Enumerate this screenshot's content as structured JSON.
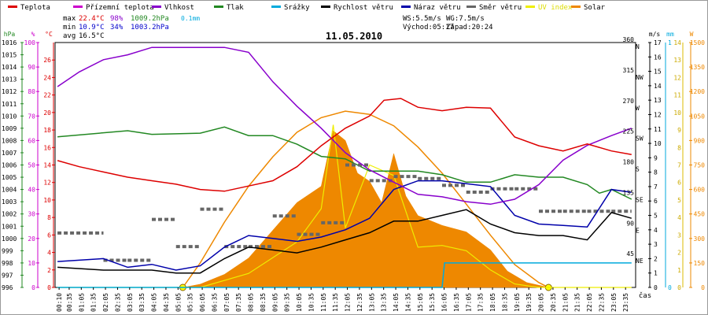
{
  "chart_data": {
    "type": "line",
    "title": "11.05.2010",
    "xlabel": "čas",
    "legend": [
      {
        "label": "Teplota",
        "color": "#dd0000"
      },
      {
        "label": "Přízemní teplota",
        "color": "#cc00cc"
      },
      {
        "label": "Vlhkost",
        "color": "#8800cc"
      },
      {
        "label": "Tlak",
        "color": "#228822"
      },
      {
        "label": "Srážky",
        "color": "#00aadd"
      },
      {
        "label": "Rychlost větru",
        "color": "#000000"
      },
      {
        "label": "Náraz větru",
        "color": "#0000aa"
      },
      {
        "label": "Směr větru",
        "color": "#666666"
      },
      {
        "label": "UV index",
        "color": "#eeee00"
      },
      {
        "label": "Solar",
        "color": "#ee8800"
      }
    ],
    "stats": {
      "max": {
        "label": "max",
        "temp": "22.4°C",
        "hum": "98%",
        "press": "1009.2hPa",
        "rain": "0.1mm"
      },
      "min": {
        "label": "min",
        "temp": "10.9°C",
        "hum": "34%",
        "press": "1003.2hPa"
      },
      "avg": {
        "label": "avg",
        "temp": "16.5°C"
      },
      "ws": "WS:5.5m/s",
      "wg": "WG:7.5m/s",
      "sunrise": "Východ:05:17",
      "sunset": "Západ:20:24"
    },
    "axes": {
      "hpa": {
        "unit": "hPa",
        "min": 996,
        "max": 1016,
        "ticks": [
          "996",
          "997",
          "998",
          "999",
          "1000",
          "1001",
          "1002",
          "1003",
          "1004",
          "1005",
          "1006",
          "1007",
          "1008",
          "1009",
          "1010",
          "1011",
          "1012",
          "1013",
          "1014",
          "1015",
          "1016"
        ]
      },
      "pct": {
        "unit": "%",
        "min": 0,
        "max": 100,
        "ticks": [
          "0",
          "10",
          "20",
          "30",
          "40",
          "50",
          "60",
          "70",
          "80",
          "90",
          "100"
        ]
      },
      "temp": {
        "unit": "°C",
        "min": 0,
        "max": 28,
        "ticks": [
          "0",
          "2",
          "4",
          "6",
          "8",
          "10",
          "12",
          "14",
          "16",
          "18",
          "20",
          "22",
          "24",
          "26"
        ]
      },
      "dir": {
        "ticks": [
          {
            "deg": "45",
            "lbl": "NE"
          },
          {
            "deg": "90",
            "lbl": "E"
          },
          {
            "deg": "135",
            "lbl": "SE"
          },
          {
            "deg": "180",
            "lbl": "S"
          },
          {
            "deg": "225",
            "lbl": "SW"
          },
          {
            "deg": "270",
            "lbl": "W"
          },
          {
            "deg": "315",
            "lbl": "NW"
          },
          {
            "deg": "360",
            "lbl": "N"
          }
        ]
      },
      "ms": {
        "unit": "m/s",
        "min": 0,
        "max": 17,
        "ticks": [
          "0",
          "1",
          "2",
          "3",
          "4",
          "5",
          "6",
          "7",
          "8",
          "9",
          "10",
          "11",
          "12",
          "13",
          "14",
          "15",
          "16",
          "17"
        ]
      },
      "mm": {
        "unit": "mm",
        "min": 0,
        "max": 1,
        "ticks": [
          "0",
          "1"
        ]
      },
      "uv": {
        "min": 0,
        "max": 14,
        "ticks": [
          "0",
          "1",
          "2",
          "3",
          "4",
          "5",
          "6",
          "7",
          "8",
          "9",
          "10",
          "11",
          "12",
          "13",
          "14"
        ]
      },
      "w": {
        "unit": "W",
        "min": 0,
        "max": 1500,
        "ticks": [
          "0",
          "150",
          "300",
          "450",
          "600",
          "750",
          "900",
          "1050",
          "1200",
          "1350",
          "1500"
        ]
      }
    },
    "x_ticks": [
      "00:10",
      "00:35",
      "01:05",
      "01:35",
      "02:05",
      "02:35",
      "03:05",
      "03:35",
      "04:05",
      "04:35",
      "05:05",
      "05:35",
      "06:05",
      "06:35",
      "07:05",
      "07:35",
      "08:05",
      "08:35",
      "09:05",
      "09:35",
      "10:05",
      "10:35",
      "11:05",
      "11:35",
      "12:05",
      "12:35",
      "13:05",
      "13:35",
      "14:05",
      "14:35",
      "15:05",
      "15:35",
      "16:05",
      "16:35",
      "17:05",
      "17:35",
      "18:05",
      "18:35",
      "19:05",
      "19:35",
      "20:05",
      "20:35",
      "21:05",
      "21:35",
      "22:05",
      "22:35",
      "23:05",
      "23:35"
    ],
    "series": {
      "temp": {
        "axis": "temp",
        "color": "#dd0000",
        "points": [
          [
            0.1,
            14.5
          ],
          [
            1,
            13.8
          ],
          [
            2,
            13.2
          ],
          [
            3,
            12.6
          ],
          [
            4,
            12.2
          ],
          [
            5,
            11.8
          ],
          [
            6,
            11.2
          ],
          [
            7,
            11
          ],
          [
            8,
            11.6
          ],
          [
            9,
            12.2
          ],
          [
            10,
            13.8
          ],
          [
            11,
            16.2
          ],
          [
            12,
            18.2
          ],
          [
            13,
            19.6
          ],
          [
            13.6,
            21.4
          ],
          [
            14.3,
            21.6
          ],
          [
            15,
            20.6
          ],
          [
            16,
            20.2
          ],
          [
            17,
            20.6
          ],
          [
            18,
            20.5
          ],
          [
            19,
            17.2
          ],
          [
            20,
            16.2
          ],
          [
            21,
            15.6
          ],
          [
            22,
            16.4
          ],
          [
            23,
            15.6
          ],
          [
            23.83,
            15.2
          ]
        ]
      },
      "humidity": {
        "axis": "pct",
        "color": "#8800cc",
        "points": [
          [
            0.1,
            82
          ],
          [
            1,
            88
          ],
          [
            2,
            93
          ],
          [
            3,
            95
          ],
          [
            4,
            98
          ],
          [
            5,
            98
          ],
          [
            6,
            98
          ],
          [
            7,
            98
          ],
          [
            8,
            96
          ],
          [
            9,
            84
          ],
          [
            10,
            74
          ],
          [
            11,
            65
          ],
          [
            12,
            55
          ],
          [
            13,
            48
          ],
          [
            14,
            43
          ],
          [
            15,
            38
          ],
          [
            16,
            37
          ],
          [
            17,
            35
          ],
          [
            18,
            34
          ],
          [
            19,
            36
          ],
          [
            20,
            42
          ],
          [
            21,
            52
          ],
          [
            22,
            58
          ],
          [
            23,
            62
          ],
          [
            23.83,
            65
          ]
        ]
      },
      "pressure": {
        "axis": "hpa",
        "color": "#228822",
        "points": [
          [
            0.1,
            1008.3
          ],
          [
            3,
            1008.8
          ],
          [
            4,
            1008.5
          ],
          [
            6,
            1008.6
          ],
          [
            7,
            1009.1
          ],
          [
            8,
            1008.4
          ],
          [
            9,
            1008.4
          ],
          [
            10,
            1007.7
          ],
          [
            11,
            1006.7
          ],
          [
            12,
            1006.5
          ],
          [
            13,
            1005.5
          ],
          [
            15,
            1005.5
          ],
          [
            16,
            1005.2
          ],
          [
            17,
            1004.6
          ],
          [
            18,
            1004.6
          ],
          [
            19,
            1005.2
          ],
          [
            20,
            1005
          ],
          [
            21,
            1005
          ],
          [
            22,
            1004.4
          ],
          [
            22.5,
            1003.7
          ],
          [
            23,
            1004
          ],
          [
            23.83,
            1003.2
          ]
        ]
      },
      "wind_speed": {
        "axis": "ms",
        "color": "#000000",
        "points": [
          [
            0.1,
            1.4
          ],
          [
            2,
            1.2
          ],
          [
            4,
            1.2
          ],
          [
            5,
            1
          ],
          [
            6,
            1
          ],
          [
            7,
            2
          ],
          [
            8,
            2.8
          ],
          [
            9,
            2.6
          ],
          [
            10,
            2.4
          ],
          [
            11,
            2.8
          ],
          [
            12,
            3.3
          ],
          [
            13,
            3.8
          ],
          [
            14,
            4.6
          ],
          [
            15,
            4.6
          ],
          [
            16,
            5
          ],
          [
            17,
            5.4
          ],
          [
            18,
            4.4
          ],
          [
            19,
            3.8
          ],
          [
            20,
            3.6
          ],
          [
            21,
            3.6
          ],
          [
            22,
            3.3
          ],
          [
            23,
            5.2
          ],
          [
            23.83,
            4.8
          ]
        ]
      },
      "wind_gust": {
        "axis": "ms",
        "color": "#0000aa",
        "points": [
          [
            0.1,
            1.8
          ],
          [
            2,
            2
          ],
          [
            3,
            1.4
          ],
          [
            4,
            1.6
          ],
          [
            5,
            1.2
          ],
          [
            6,
            1.5
          ],
          [
            7,
            2.8
          ],
          [
            8,
            3.6
          ],
          [
            9,
            3.4
          ],
          [
            10,
            3.2
          ],
          [
            11,
            3.5
          ],
          [
            12,
            4
          ],
          [
            13,
            4.8
          ],
          [
            14,
            6.8
          ],
          [
            15,
            7.4
          ],
          [
            16,
            7.4
          ],
          [
            17,
            7.2
          ],
          [
            18,
            7
          ],
          [
            19,
            5
          ],
          [
            20,
            4.4
          ],
          [
            21,
            4.3
          ],
          [
            22,
            4.2
          ],
          [
            23,
            6.8
          ],
          [
            23.83,
            6.6
          ]
        ]
      },
      "wind_dir": {
        "axis": "dir",
        "color": "#666666",
        "points": [
          [
            0.1,
            80
          ],
          [
            2,
            40
          ],
          [
            3,
            40
          ],
          [
            4,
            100
          ],
          [
            5,
            60
          ],
          [
            6,
            115
          ],
          [
            7,
            60
          ],
          [
            8,
            60
          ],
          [
            9,
            105
          ],
          [
            10,
            78
          ],
          [
            11,
            95
          ],
          [
            12,
            180
          ],
          [
            13,
            157
          ],
          [
            14,
            163
          ],
          [
            15,
            160
          ],
          [
            16,
            150
          ],
          [
            17,
            140
          ],
          [
            18,
            145
          ],
          [
            19,
            145
          ],
          [
            20,
            112
          ],
          [
            21,
            112
          ],
          [
            22,
            112
          ],
          [
            23,
            112
          ],
          [
            23.83,
            112
          ]
        ]
      },
      "solar": {
        "axis": "w",
        "color": "#ee8800",
        "points": [
          [
            0.1,
            0
          ],
          [
            5.3,
            0
          ],
          [
            6,
            20
          ],
          [
            7,
            80
          ],
          [
            8,
            180
          ],
          [
            9,
            350
          ],
          [
            10,
            520
          ],
          [
            11,
            620
          ],
          [
            11.5,
            960
          ],
          [
            12,
            900
          ],
          [
            12.5,
            700
          ],
          [
            13,
            650
          ],
          [
            13.5,
            520
          ],
          [
            14,
            820
          ],
          [
            14.5,
            560
          ],
          [
            15,
            440
          ],
          [
            16,
            380
          ],
          [
            17,
            340
          ],
          [
            18,
            230
          ],
          [
            18.7,
            100
          ],
          [
            19.5,
            30
          ],
          [
            20.4,
            0
          ],
          [
            23.83,
            0
          ]
        ]
      },
      "solar_theoretical": {
        "axis": "w",
        "color": "#ee8800",
        "points": [
          [
            5.28,
            0
          ],
          [
            6,
            150
          ],
          [
            7,
            400
          ],
          [
            8,
            620
          ],
          [
            9,
            800
          ],
          [
            10,
            950
          ],
          [
            11,
            1040
          ],
          [
            12,
            1080
          ],
          [
            13,
            1060
          ],
          [
            14,
            990
          ],
          [
            15,
            860
          ],
          [
            16,
            700
          ],
          [
            17,
            510
          ],
          [
            18,
            320
          ],
          [
            19,
            140
          ],
          [
            20,
            30
          ],
          [
            20.4,
            0
          ]
        ]
      },
      "uv": {
        "axis": "uv",
        "color": "#eeee00",
        "points": [
          [
            0.1,
            0
          ],
          [
            6,
            0
          ],
          [
            8,
            0.8
          ],
          [
            10,
            2.6
          ],
          [
            11,
            4.5
          ],
          [
            11.5,
            9.3
          ],
          [
            12,
            3.4
          ],
          [
            13,
            7
          ],
          [
            14,
            6.4
          ],
          [
            15,
            2.3
          ],
          [
            16,
            2.4
          ],
          [
            17,
            2.1
          ],
          [
            18,
            1
          ],
          [
            19,
            0.2
          ],
          [
            20,
            0
          ],
          [
            23.83,
            0
          ]
        ]
      },
      "rain": {
        "axis": "mm",
        "color": "#00aadd",
        "points": [
          [
            0.1,
            0
          ],
          [
            16,
            0
          ],
          [
            16.1,
            0.1
          ],
          [
            23.83,
            0.1
          ]
        ]
      }
    }
  }
}
